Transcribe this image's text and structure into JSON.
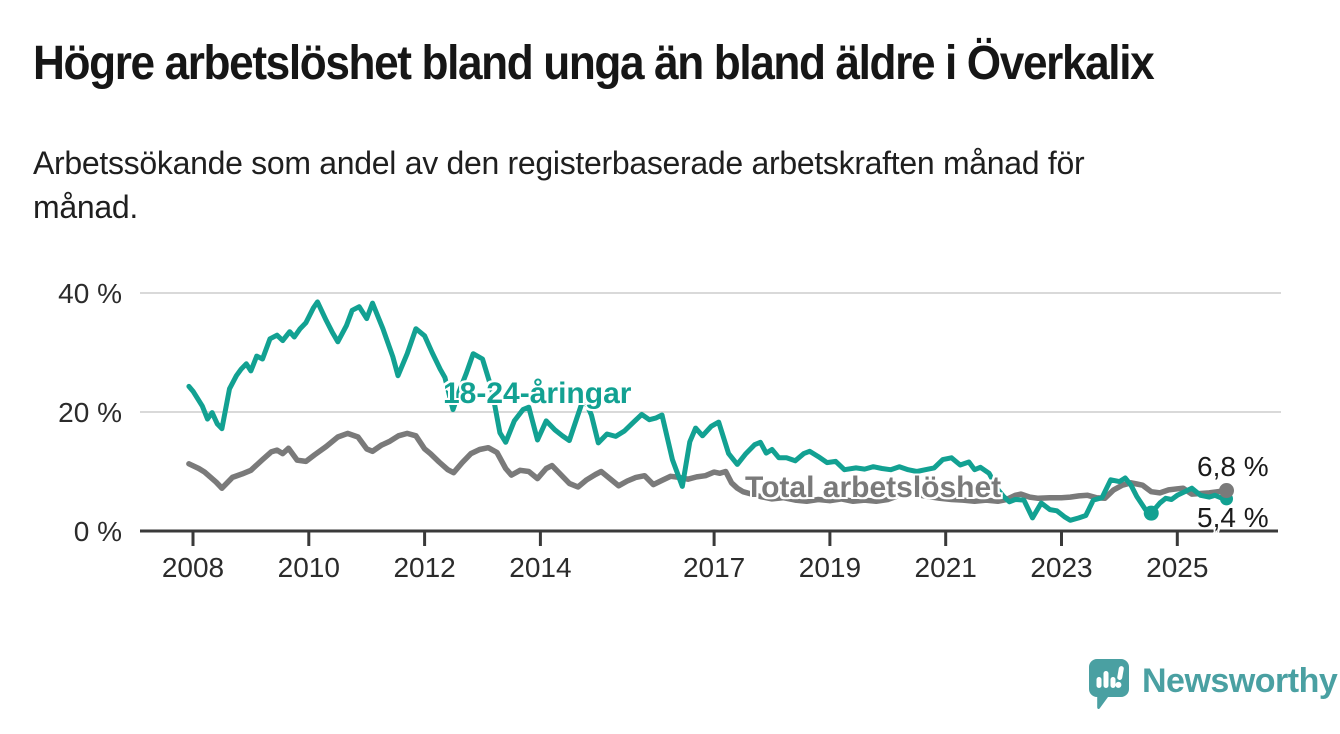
{
  "chart_data": {
    "type": "line",
    "title": "Högre arbetslöshet bland unga än bland äldre i Överkalix",
    "subtitle_lines": [
      "Arbetssökande som andel av den registerbaserade arbetskraften månad för",
      "månad."
    ],
    "grid": "horizontal",
    "grid_color": "#D9D9D9",
    "axis_color": "#3A3A3A",
    "tick_label_color": "#2B2B2B",
    "x_axis": {
      "ticks": [
        {
          "value": 2008,
          "label": "2008"
        },
        {
          "value": 2010,
          "label": "2010"
        },
        {
          "value": 2012,
          "label": "2012"
        },
        {
          "value": 2014,
          "label": "2014"
        },
        {
          "value": 2017,
          "label": "2017"
        },
        {
          "value": 2019,
          "label": "2019"
        },
        {
          "value": 2021,
          "label": "2021"
        },
        {
          "value": 2023,
          "label": "2023"
        },
        {
          "value": 2025,
          "label": "2025"
        }
      ]
    },
    "y_axis": {
      "unit": "%",
      "range": [
        0,
        42
      ],
      "ticks": [
        {
          "value": 0,
          "label": "0 %"
        },
        {
          "value": 20,
          "label": "20 %"
        },
        {
          "value": 40,
          "label": "40 %"
        }
      ]
    },
    "series": [
      {
        "id": "total",
        "name": "Total arbetslöshet",
        "color": "#7A7A7A",
        "end_value": 6.8,
        "end_label": "6,8 %",
        "points": [
          [
            2007.93,
            11.3
          ],
          [
            2008.1,
            10.5
          ],
          [
            2008.2,
            9.9
          ],
          [
            2008.4,
            8.2
          ],
          [
            2008.5,
            7.2
          ],
          [
            2008.68,
            9.0
          ],
          [
            2008.85,
            9.6
          ],
          [
            2009.0,
            10.2
          ],
          [
            2009.2,
            12.0
          ],
          [
            2009.35,
            13.3
          ],
          [
            2009.45,
            13.6
          ],
          [
            2009.55,
            13.0
          ],
          [
            2009.65,
            13.9
          ],
          [
            2009.8,
            11.9
          ],
          [
            2009.95,
            11.7
          ],
          [
            2010.1,
            12.8
          ],
          [
            2010.3,
            14.2
          ],
          [
            2010.5,
            15.8
          ],
          [
            2010.67,
            16.4
          ],
          [
            2010.85,
            15.8
          ],
          [
            2011.0,
            13.8
          ],
          [
            2011.1,
            13.4
          ],
          [
            2011.25,
            14.4
          ],
          [
            2011.4,
            15.1
          ],
          [
            2011.55,
            16.0
          ],
          [
            2011.7,
            16.4
          ],
          [
            2011.85,
            16.0
          ],
          [
            2012.0,
            13.8
          ],
          [
            2012.1,
            13.0
          ],
          [
            2012.25,
            11.6
          ],
          [
            2012.4,
            10.3
          ],
          [
            2012.5,
            9.8
          ],
          [
            2012.65,
            11.5
          ],
          [
            2012.8,
            13.0
          ],
          [
            2012.95,
            13.7
          ],
          [
            2013.1,
            14.0
          ],
          [
            2013.25,
            13.2
          ],
          [
            2013.4,
            10.5
          ],
          [
            2013.5,
            9.4
          ],
          [
            2013.65,
            10.2
          ],
          [
            2013.8,
            10.0
          ],
          [
            2013.95,
            8.8
          ],
          [
            2014.1,
            10.5
          ],
          [
            2014.2,
            11.0
          ],
          [
            2014.35,
            9.5
          ],
          [
            2014.5,
            8.0
          ],
          [
            2014.65,
            7.4
          ],
          [
            2014.8,
            8.6
          ],
          [
            2014.95,
            9.5
          ],
          [
            2015.05,
            10.0
          ],
          [
            2015.2,
            8.8
          ],
          [
            2015.35,
            7.6
          ],
          [
            2015.5,
            8.4
          ],
          [
            2015.65,
            9.0
          ],
          [
            2015.8,
            9.3
          ],
          [
            2015.95,
            7.8
          ],
          [
            2016.1,
            8.5
          ],
          [
            2016.25,
            9.2
          ],
          [
            2016.4,
            9.0
          ],
          [
            2016.55,
            8.7
          ],
          [
            2016.7,
            9.1
          ],
          [
            2016.85,
            9.3
          ],
          [
            2017.0,
            9.9
          ],
          [
            2017.1,
            9.7
          ],
          [
            2017.2,
            10.0
          ],
          [
            2017.3,
            8.1
          ],
          [
            2017.4,
            7.2
          ],
          [
            2017.5,
            6.6
          ],
          [
            2017.65,
            6.2
          ],
          [
            2017.8,
            5.8
          ],
          [
            2018.0,
            5.4
          ],
          [
            2018.2,
            5.6
          ],
          [
            2018.4,
            5.2
          ],
          [
            2018.6,
            5.0
          ],
          [
            2018.8,
            5.3
          ],
          [
            2019.0,
            5.1
          ],
          [
            2019.2,
            5.4
          ],
          [
            2019.4,
            5.0
          ],
          [
            2019.6,
            5.2
          ],
          [
            2019.8,
            5.0
          ],
          [
            2020.0,
            5.3
          ],
          [
            2020.2,
            6.0
          ],
          [
            2020.35,
            6.3
          ],
          [
            2020.5,
            6.1
          ],
          [
            2020.7,
            5.8
          ],
          [
            2020.9,
            5.5
          ],
          [
            2021.1,
            5.3
          ],
          [
            2021.3,
            5.2
          ],
          [
            2021.5,
            5.0
          ],
          [
            2021.7,
            5.2
          ],
          [
            2021.9,
            5.0
          ],
          [
            2022.05,
            5.3
          ],
          [
            2022.2,
            6.0
          ],
          [
            2022.3,
            6.2
          ],
          [
            2022.45,
            5.7
          ],
          [
            2022.6,
            5.5
          ],
          [
            2022.8,
            5.6
          ],
          [
            2023.0,
            5.6
          ],
          [
            2023.15,
            5.7
          ],
          [
            2023.3,
            5.9
          ],
          [
            2023.45,
            6.0
          ],
          [
            2023.6,
            5.6
          ],
          [
            2023.75,
            5.5
          ],
          [
            2023.9,
            6.9
          ],
          [
            2024.05,
            7.7
          ],
          [
            2024.2,
            8.1
          ],
          [
            2024.3,
            7.9
          ],
          [
            2024.4,
            7.7
          ],
          [
            2024.55,
            6.6
          ],
          [
            2024.7,
            6.4
          ],
          [
            2024.85,
            6.9
          ],
          [
            2025.0,
            7.1
          ],
          [
            2025.1,
            7.2
          ],
          [
            2025.25,
            6.2
          ],
          [
            2025.4,
            6.3
          ],
          [
            2025.55,
            6.4
          ],
          [
            2025.7,
            6.6
          ],
          [
            2025.85,
            6.8
          ]
        ]
      },
      {
        "id": "young",
        "name": "18-24-åringar",
        "color": "#12A192",
        "end_value": 5.4,
        "end_label": "5,4 %",
        "gap_dot": [
          2024.55,
          3.0
        ],
        "points": [
          [
            2007.93,
            24.3
          ],
          [
            2008.0,
            23.5
          ],
          [
            2008.16,
            21.0
          ],
          [
            2008.25,
            18.8
          ],
          [
            2008.33,
            19.9
          ],
          [
            2008.42,
            18.0
          ],
          [
            2008.5,
            17.2
          ],
          [
            2008.63,
            23.9
          ],
          [
            2008.75,
            26.1
          ],
          [
            2008.83,
            27.2
          ],
          [
            2008.92,
            28.1
          ],
          [
            2009.0,
            26.9
          ],
          [
            2009.1,
            29.4
          ],
          [
            2009.2,
            28.9
          ],
          [
            2009.33,
            32.3
          ],
          [
            2009.45,
            32.9
          ],
          [
            2009.55,
            32.0
          ],
          [
            2009.67,
            33.5
          ],
          [
            2009.75,
            32.6
          ],
          [
            2009.85,
            34.0
          ],
          [
            2009.95,
            35.0
          ],
          [
            2010.08,
            37.5
          ],
          [
            2010.15,
            38.5
          ],
          [
            2010.3,
            35.4
          ],
          [
            2010.4,
            33.5
          ],
          [
            2010.5,
            31.8
          ],
          [
            2010.65,
            34.5
          ],
          [
            2010.75,
            37.1
          ],
          [
            2010.87,
            37.7
          ],
          [
            2011.0,
            35.7
          ],
          [
            2011.1,
            38.3
          ],
          [
            2011.28,
            34.0
          ],
          [
            2011.45,
            29.3
          ],
          [
            2011.54,
            26.1
          ],
          [
            2011.7,
            29.8
          ],
          [
            2011.85,
            34.0
          ],
          [
            2012.0,
            32.8
          ],
          [
            2012.13,
            30.0
          ],
          [
            2012.27,
            27.2
          ],
          [
            2012.35,
            25.8
          ],
          [
            2012.49,
            20.4
          ],
          [
            2012.6,
            23.5
          ],
          [
            2012.72,
            26.5
          ],
          [
            2012.84,
            29.8
          ],
          [
            2013.0,
            28.9
          ],
          [
            2013.16,
            23.8
          ],
          [
            2013.3,
            16.5
          ],
          [
            2013.4,
            14.9
          ],
          [
            2013.55,
            18.5
          ],
          [
            2013.7,
            20.4
          ],
          [
            2013.8,
            20.8
          ],
          [
            2013.95,
            15.3
          ],
          [
            2014.1,
            18.5
          ],
          [
            2014.25,
            17.0
          ],
          [
            2014.38,
            16.0
          ],
          [
            2014.5,
            15.2
          ],
          [
            2014.63,
            19.0
          ],
          [
            2014.75,
            22.4
          ],
          [
            2014.88,
            19.5
          ],
          [
            2015.0,
            14.8
          ],
          [
            2015.15,
            16.3
          ],
          [
            2015.3,
            15.9
          ],
          [
            2015.45,
            16.8
          ],
          [
            2015.6,
            18.2
          ],
          [
            2015.75,
            19.6
          ],
          [
            2015.88,
            18.7
          ],
          [
            2016.0,
            19.0
          ],
          [
            2016.1,
            19.5
          ],
          [
            2016.28,
            12.0
          ],
          [
            2016.45,
            7.5
          ],
          [
            2016.58,
            15.0
          ],
          [
            2016.68,
            17.3
          ],
          [
            2016.8,
            16.0
          ],
          [
            2016.95,
            17.6
          ],
          [
            2017.08,
            18.3
          ],
          [
            2017.25,
            13.0
          ],
          [
            2017.4,
            11.2
          ],
          [
            2017.55,
            13.0
          ],
          [
            2017.7,
            14.5
          ],
          [
            2017.8,
            14.9
          ],
          [
            2017.9,
            13.1
          ],
          [
            2018.0,
            13.7
          ],
          [
            2018.12,
            12.3
          ],
          [
            2018.25,
            12.3
          ],
          [
            2018.4,
            11.8
          ],
          [
            2018.55,
            13.0
          ],
          [
            2018.65,
            13.4
          ],
          [
            2018.8,
            12.5
          ],
          [
            2018.95,
            11.5
          ],
          [
            2019.1,
            11.7
          ],
          [
            2019.25,
            10.3
          ],
          [
            2019.45,
            10.6
          ],
          [
            2019.6,
            10.4
          ],
          [
            2019.75,
            10.8
          ],
          [
            2019.9,
            10.5
          ],
          [
            2020.05,
            10.3
          ],
          [
            2020.2,
            10.8
          ],
          [
            2020.35,
            10.3
          ],
          [
            2020.5,
            10.0
          ],
          [
            2020.65,
            10.3
          ],
          [
            2020.8,
            10.6
          ],
          [
            2020.95,
            12.0
          ],
          [
            2021.1,
            12.3
          ],
          [
            2021.25,
            11.1
          ],
          [
            2021.4,
            11.6
          ],
          [
            2021.5,
            10.3
          ],
          [
            2021.6,
            10.7
          ],
          [
            2021.75,
            9.7
          ],
          [
            2021.9,
            7.0
          ],
          [
            2022.0,
            5.8
          ],
          [
            2022.1,
            4.9
          ],
          [
            2022.2,
            5.3
          ],
          [
            2022.35,
            5.2
          ],
          [
            2022.5,
            2.2
          ],
          [
            2022.65,
            4.7
          ],
          [
            2022.8,
            3.6
          ],
          [
            2022.92,
            3.4
          ],
          [
            2023.05,
            2.4
          ],
          [
            2023.15,
            1.8
          ],
          [
            2023.3,
            2.2
          ],
          [
            2023.42,
            2.6
          ],
          [
            2023.55,
            5.2
          ],
          [
            2023.7,
            5.6
          ],
          [
            2023.85,
            8.6
          ],
          [
            2024.0,
            8.3
          ],
          [
            2024.1,
            8.9
          ],
          [
            2024.2,
            7.7
          ],
          [
            2024.3,
            5.8
          ],
          [
            2024.45,
            3.6
          ],
          [
            2024.55,
            3.0
          ],
          [
            2024.7,
            4.7
          ],
          [
            2024.8,
            5.5
          ],
          [
            2024.9,
            5.3
          ],
          [
            2025.0,
            6.0
          ],
          [
            2025.15,
            6.7
          ],
          [
            2025.25,
            7.2
          ],
          [
            2025.4,
            6.0
          ],
          [
            2025.55,
            5.7
          ],
          [
            2025.65,
            6.0
          ],
          [
            2025.75,
            5.6
          ],
          [
            2025.85,
            5.4
          ]
        ]
      }
    ]
  },
  "branding": {
    "logo_text": "Newsworthy",
    "logo_color": "#4AA0A2",
    "logo_icon": "bar-chart-speech-bubble"
  }
}
